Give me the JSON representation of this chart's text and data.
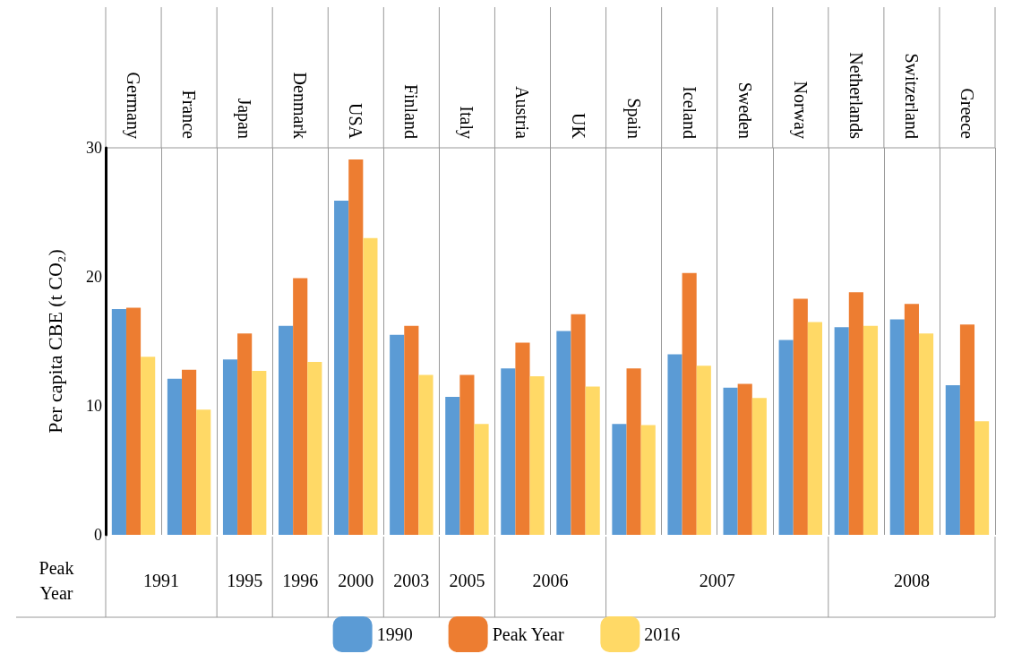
{
  "chart_data": {
    "type": "bar",
    "ylabel": "Per capita CBE (t CO₂)",
    "categories": [
      "Germany",
      "France",
      "Japan",
      "Denmark",
      "USA",
      "Finland",
      "Italy",
      "Austria",
      "UK",
      "Spain",
      "Iceland",
      "Sweden",
      "Norway",
      "Netherlands",
      "Switzerland",
      "Greece"
    ],
    "series": [
      {
        "name": "1990",
        "color": "#5b9bd5",
        "values": [
          17.5,
          12.1,
          13.6,
          16.2,
          25.9,
          15.5,
          10.7,
          12.9,
          15.8,
          8.6,
          14.0,
          11.4,
          15.1,
          16.1,
          16.7,
          11.6
        ]
      },
      {
        "name": "Peak Year",
        "color": "#ed7d31",
        "values": [
          17.6,
          12.8,
          15.6,
          19.9,
          29.1,
          16.2,
          12.4,
          14.9,
          17.1,
          12.9,
          20.3,
          11.7,
          18.3,
          18.8,
          17.9,
          16.3
        ]
      },
      {
        "name": "2016",
        "color": "#ffd966",
        "values": [
          13.8,
          9.7,
          12.7,
          13.4,
          23.0,
          12.4,
          8.6,
          12.3,
          11.5,
          8.5,
          13.1,
          10.6,
          16.5,
          16.2,
          15.6,
          8.8
        ]
      }
    ],
    "ylim": [
      0,
      30
    ],
    "yticks": [
      0,
      10,
      20,
      30
    ],
    "grid": "x",
    "legend": "bottom",
    "annotations": [
      "Peak Year",
      "1991",
      "1995",
      "1996",
      "2000",
      "2003",
      "2005",
      "2006",
      "2007",
      "2008"
    ]
  }
}
